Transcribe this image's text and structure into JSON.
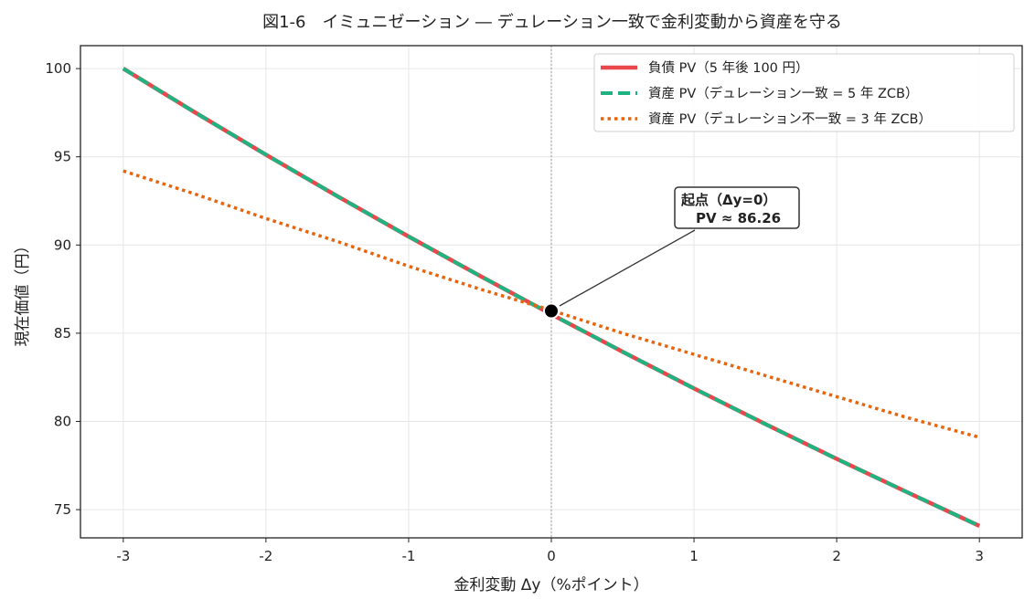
{
  "chart_data": {
    "type": "line",
    "title": "図1-6　イミュニゼーション ― デュレーション一致で金利変動から資産を守る",
    "xlabel": "金利変動 Δy（%ポイント）",
    "ylabel": "現在価値（円）",
    "xlim": [
      -3.3,
      3.3
    ],
    "ylim": [
      73.4,
      101.3
    ],
    "xticks": [
      -3,
      -2,
      -1,
      0,
      1,
      2,
      3
    ],
    "xtick_labels": [
      "-3",
      "-2",
      "-1",
      "0",
      "1",
      "2",
      "3"
    ],
    "yticks": [
      75,
      80,
      85,
      90,
      95,
      100
    ],
    "ytick_labels": [
      "75",
      "80",
      "85",
      "90",
      "95",
      "100"
    ],
    "grid": true,
    "legend_position": "top-right",
    "x": [
      -3,
      -2.5,
      -2,
      -1.5,
      -1,
      -0.5,
      0,
      0.5,
      1,
      1.5,
      2,
      2.5,
      3
    ],
    "series": [
      {
        "name": "負債 PV（5 年後 100 円）",
        "color": "#e8474c",
        "style": "solid",
        "values": [
          100.0,
          97.53,
          95.12,
          92.77,
          90.48,
          88.25,
          86.07,
          83.95,
          81.87,
          79.85,
          77.88,
          75.96,
          74.08
        ]
      },
      {
        "name": "資産 PV（デュレーション一致 = 5 年 ZCB）",
        "color": "#1fb381",
        "style": "dashed",
        "values": [
          100.0,
          97.53,
          95.12,
          92.77,
          90.48,
          88.25,
          86.07,
          83.95,
          81.87,
          79.85,
          77.88,
          75.96,
          74.08
        ]
      },
      {
        "name": "資産 PV（デュレーション不一致 = 3 年 ZCB）",
        "color": "#e8640c",
        "style": "dotted",
        "values": [
          94.2,
          92.9,
          91.5,
          90.2,
          88.8,
          87.5,
          86.3,
          85.0,
          83.8,
          82.6,
          81.4,
          80.2,
          79.1
        ]
      }
    ],
    "annotation": {
      "line1": "起点（Δy=0）",
      "line2": "PV ≈ 86.26",
      "point": {
        "x": 0,
        "y": 86.26
      }
    },
    "vline_x": 0
  }
}
